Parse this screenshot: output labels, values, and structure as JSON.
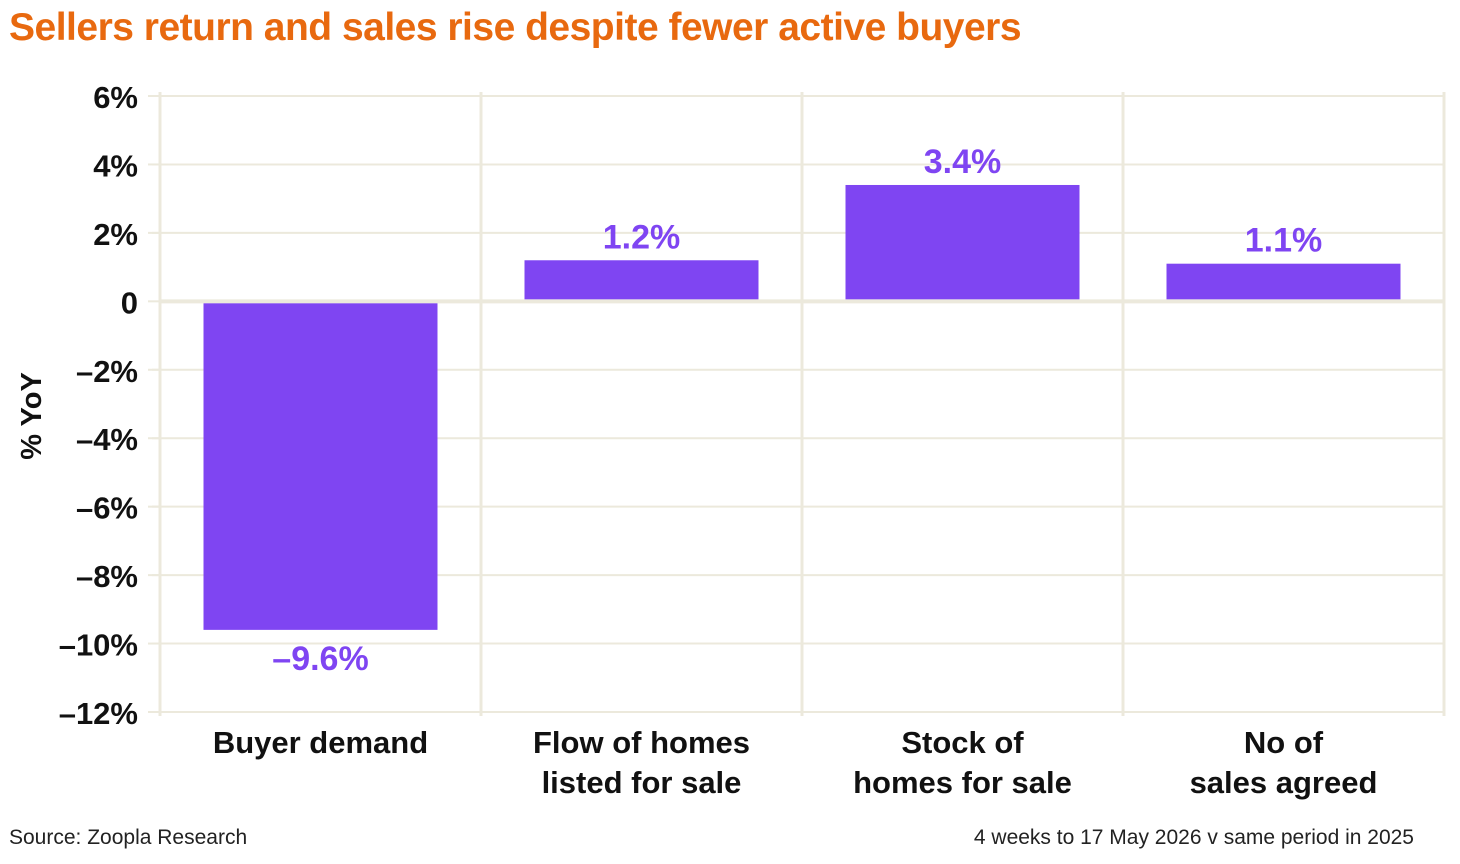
{
  "title": "Sellers return and sales rise despite fewer active buyers",
  "source": "Source: Zoopla Research",
  "period_note": "4 weeks to 17 May 2026 v same period in 2025",
  "colors": {
    "title": "#e8690f",
    "bar": "#7f45f2",
    "grid": "#ece9dc",
    "text": "#111111"
  },
  "chart_data": {
    "type": "bar",
    "ylabel": "% YoY",
    "ylim": [
      -12,
      6
    ],
    "yticks": [
      {
        "value": 6,
        "label": "6%"
      },
      {
        "value": 4,
        "label": "4%"
      },
      {
        "value": 2,
        "label": "2%"
      },
      {
        "value": 0,
        "label": "0"
      },
      {
        "value": -2,
        "label": "–2%"
      },
      {
        "value": -4,
        "label": "–4%"
      },
      {
        "value": -6,
        "label": "–6%"
      },
      {
        "value": -8,
        "label": "–8%"
      },
      {
        "value": -10,
        "label": "–10%"
      },
      {
        "value": -12,
        "label": "–12%"
      }
    ],
    "categories": [
      [
        "Buyer demand"
      ],
      [
        "Flow of homes",
        "listed for sale"
      ],
      [
        "Stock of",
        "homes for sale"
      ],
      [
        "No of",
        "sales agreed"
      ]
    ],
    "values": [
      -9.6,
      1.2,
      3.4,
      1.1
    ],
    "data_labels": [
      "–9.6%",
      "1.2%",
      "3.4%",
      "1.1%"
    ],
    "grid": true,
    "legend": "none"
  }
}
